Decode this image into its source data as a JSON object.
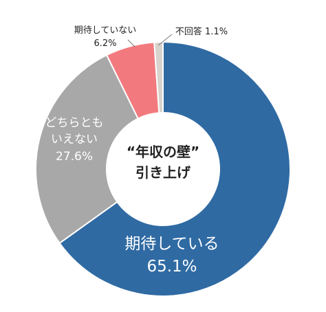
{
  "chart_data": {
    "type": "pie",
    "center_label": [
      "“年収の壁”",
      "引き上げ"
    ],
    "slices": [
      {
        "label": "期待している",
        "value": 65.1,
        "value_text": "65.1%",
        "color": "#2f6aa3"
      },
      {
        "label": "どちらともいえない",
        "label_lines": [
          "どちらとも",
          "いえない"
        ],
        "value": 27.6,
        "value_text": "27.6%",
        "color": "#a8a8a8"
      },
      {
        "label": "期待していない",
        "value": 6.2,
        "value_text": "6.2%",
        "color": "#f27a7e"
      },
      {
        "label": "不回答",
        "value": 1.1,
        "value_text": "1.1%",
        "color": "#d9d3cd"
      }
    ]
  }
}
